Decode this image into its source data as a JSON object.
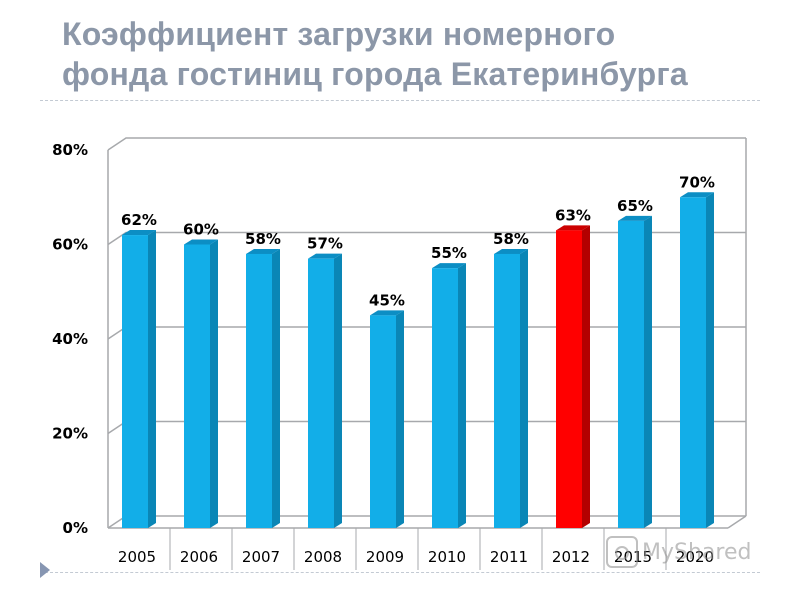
{
  "title": {
    "line1": "Коэффициент загрузки номерного",
    "line2": "фонда гостиниц города Екатеринбурга"
  },
  "watermark": "MyShared",
  "chart_data": {
    "type": "bar",
    "categories": [
      "2005",
      "2006",
      "2007",
      "2008",
      "2009",
      "2010",
      "2011",
      "2012",
      "2015",
      "2020"
    ],
    "values": [
      62,
      60,
      58,
      57,
      45,
      55,
      58,
      63,
      65,
      70
    ],
    "data_labels": [
      "62%",
      "60%",
      "58%",
      "57%",
      "45%",
      "55%",
      "58%",
      "63%",
      "65%",
      "70%"
    ],
    "y_ticks": [
      0,
      20,
      40,
      60,
      80
    ],
    "y_tick_labels": [
      "0%",
      "20%",
      "40%",
      "60%",
      "80%"
    ],
    "ylim": [
      0,
      80
    ],
    "grid": true,
    "xlabel": "",
    "ylabel": "",
    "colors": {
      "default_bar": "#12aee8",
      "default_bar_side": "#0a86b6",
      "default_bar_top": "#0c8ec4",
      "highlight_bar": "#ff0000",
      "highlight_bar_side": "#b30000",
      "highlight_bar_top": "#cc0000",
      "grid": "#a7a9ac"
    },
    "highlight_category": "2012"
  }
}
